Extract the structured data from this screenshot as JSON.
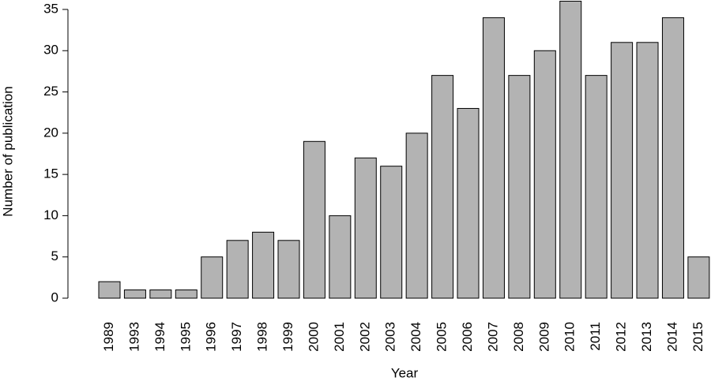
{
  "chart_data": {
    "type": "bar",
    "x_label": "Year",
    "y_label": "Number of publication",
    "categories": [
      "1989",
      "1993",
      "1994",
      "1995",
      "1996",
      "1997",
      "1998",
      "1999",
      "2000",
      "2001",
      "2002",
      "2003",
      "2004",
      "2005",
      "2006",
      "2007",
      "2008",
      "2009",
      "2010",
      "2011",
      "2012",
      "2013",
      "2014",
      "2015"
    ],
    "values": [
      2,
      1,
      1,
      1,
      5,
      7,
      8,
      7,
      19,
      10,
      17,
      16,
      20,
      27,
      23,
      34,
      27,
      30,
      36,
      27,
      31,
      31,
      34,
      5
    ],
    "color": "#b3b3b3",
    "ylim": [
      0,
      36
    ],
    "yticks": [
      0,
      5,
      10,
      15,
      20,
      25,
      30,
      35
    ],
    "grid": false
  }
}
